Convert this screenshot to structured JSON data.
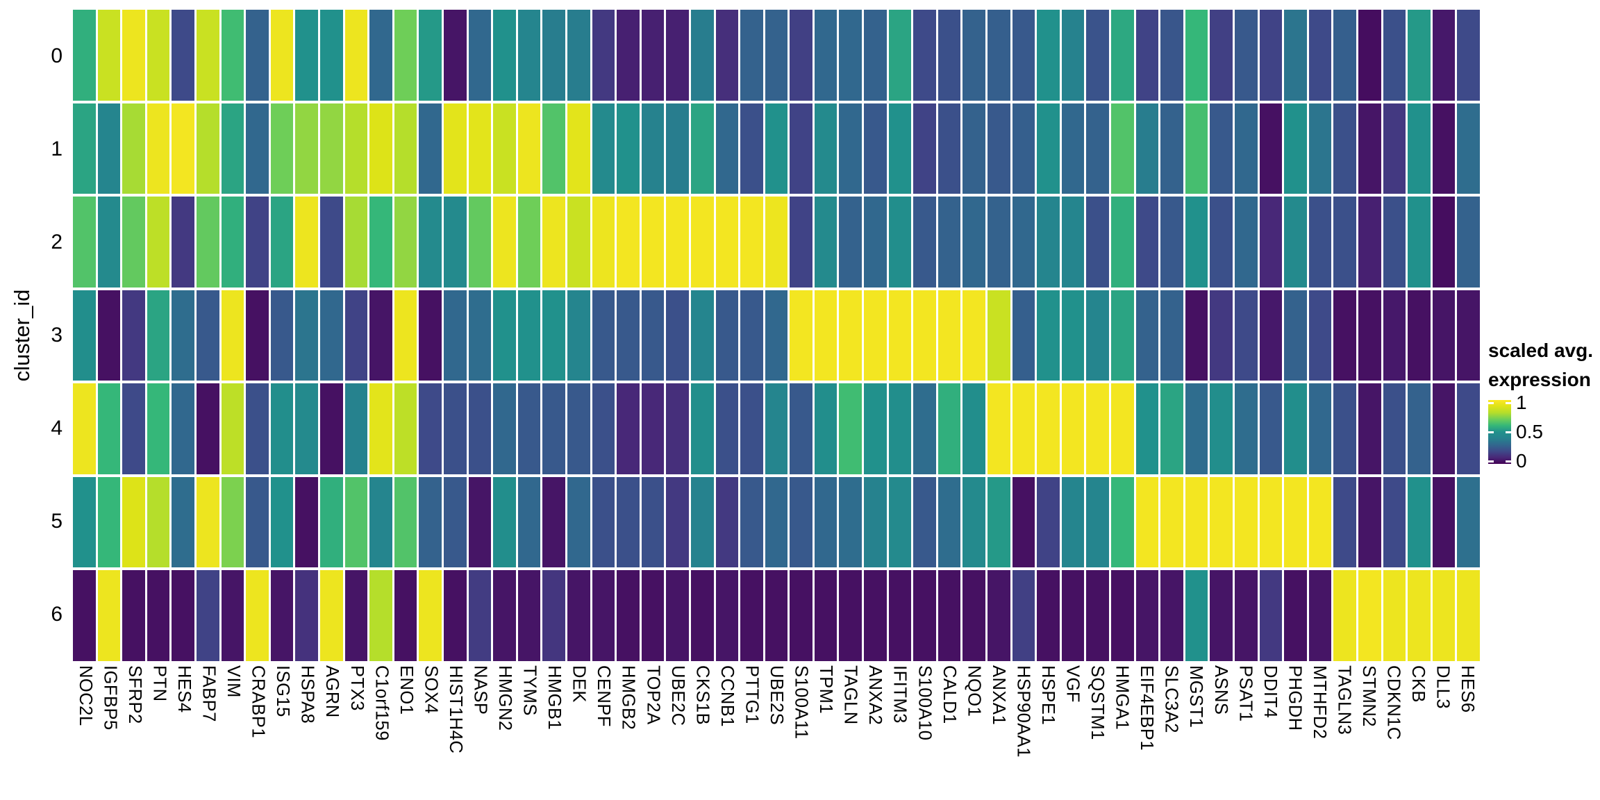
{
  "y_axis": {
    "title": "cluster_id",
    "ticks": [
      "0",
      "1",
      "2",
      "3",
      "4",
      "5",
      "6"
    ]
  },
  "legend": {
    "title_line1": "scaled avg.",
    "title_line2": "expression",
    "tick_labels": [
      "1",
      "0.5",
      "0"
    ],
    "tick_positions": [
      1.0,
      0.5,
      0.0
    ]
  },
  "colors": {
    "background": "#ffffff",
    "viridis_stops": [
      "#440154",
      "#482878",
      "#3e4a89",
      "#31688e",
      "#26828e",
      "#21918c",
      "#35b779",
      "#6ece58",
      "#b5de2b",
      "#dde318",
      "#fde725"
    ]
  },
  "chart_data": {
    "type": "heatmap",
    "title": "",
    "xlabel": "",
    "ylabel": "cluster_id",
    "legend_title": "scaled avg. expression",
    "value_range": [
      0,
      1
    ],
    "grid": false,
    "legend_position": "right",
    "x": [
      "NOC2L",
      "IGFBP5",
      "SFRP2",
      "PTN",
      "HES4",
      "FABP7",
      "VIM",
      "CRABP1",
      "ISG15",
      "HSPA8",
      "AGRN",
      "PTX3",
      "C1orf159",
      "ENO1",
      "SOX4",
      "HIST1H4C",
      "NASP",
      "HMGN2",
      "TYMS",
      "HMGB1",
      "DEK",
      "CENPF",
      "HMGB2",
      "TOP2A",
      "UBE2C",
      "CKS1B",
      "CCNB1",
      "PTTG1",
      "UBE2S",
      "S100A11",
      "TPM1",
      "TAGLN",
      "ANXA2",
      "IFITM3",
      "S100A10",
      "CALD1",
      "NQO1",
      "ANXA1",
      "HSP90AA1",
      "HSPE1",
      "VGF",
      "SQSTM1",
      "HMGA1",
      "EIF4EBP1",
      "SLC3A2",
      "MGST1",
      "ASNS",
      "PSAT1",
      "DDIT4",
      "PHGDH",
      "MTHFD2",
      "TAGLN3",
      "STMN2",
      "CDKN1C",
      "CKB",
      "DLL3",
      "HES6"
    ],
    "y": [
      "0",
      "1",
      "2",
      "3",
      "4",
      "5",
      "6"
    ],
    "values": [
      [
        0.58,
        0.85,
        0.95,
        0.85,
        0.2,
        0.85,
        0.62,
        0.28,
        0.95,
        0.5,
        0.5,
        0.95,
        0.3,
        0.7,
        0.52,
        0.05,
        0.3,
        0.5,
        0.42,
        0.38,
        0.38,
        0.15,
        0.08,
        0.08,
        0.08,
        0.38,
        0.12,
        0.28,
        0.28,
        0.17,
        0.3,
        0.3,
        0.28,
        0.55,
        0.2,
        0.22,
        0.28,
        0.27,
        0.25,
        0.5,
        0.4,
        0.23,
        0.56,
        0.18,
        0.24,
        0.6,
        0.17,
        0.25,
        0.18,
        0.35,
        0.2,
        0.27,
        0.03,
        0.22,
        0.52,
        0.06,
        0.2
      ],
      [
        0.55,
        0.42,
        0.78,
        0.95,
        0.97,
        0.8,
        0.55,
        0.3,
        0.7,
        0.75,
        0.75,
        0.8,
        0.9,
        0.8,
        0.3,
        0.92,
        0.92,
        0.85,
        0.95,
        0.65,
        0.92,
        0.45,
        0.5,
        0.4,
        0.38,
        0.55,
        0.3,
        0.22,
        0.5,
        0.18,
        0.45,
        0.3,
        0.25,
        0.5,
        0.18,
        0.22,
        0.28,
        0.25,
        0.27,
        0.5,
        0.3,
        0.28,
        0.65,
        0.38,
        0.28,
        0.63,
        0.25,
        0.3,
        0.04,
        0.5,
        0.35,
        0.22,
        0.05,
        0.15,
        0.5,
        0.04,
        0.32
      ],
      [
        0.65,
        0.45,
        0.68,
        0.82,
        0.15,
        0.68,
        0.58,
        0.18,
        0.55,
        0.95,
        0.2,
        0.78,
        0.6,
        0.75,
        0.45,
        0.45,
        0.68,
        0.95,
        0.7,
        0.95,
        0.85,
        0.95,
        0.97,
        0.97,
        0.97,
        0.97,
        0.97,
        0.97,
        0.95,
        0.18,
        0.45,
        0.28,
        0.3,
        0.48,
        0.25,
        0.28,
        0.3,
        0.28,
        0.3,
        0.42,
        0.42,
        0.22,
        0.58,
        0.2,
        0.25,
        0.5,
        0.22,
        0.3,
        0.1,
        0.45,
        0.22,
        0.22,
        0.08,
        0.22,
        0.5,
        0.03,
        0.28
      ],
      [
        0.48,
        0.04,
        0.15,
        0.55,
        0.32,
        0.25,
        0.95,
        0.04,
        0.25,
        0.35,
        0.3,
        0.18,
        0.05,
        0.95,
        0.04,
        0.3,
        0.32,
        0.5,
        0.5,
        0.5,
        0.42,
        0.25,
        0.25,
        0.25,
        0.22,
        0.42,
        0.25,
        0.25,
        0.3,
        0.97,
        0.97,
        0.97,
        0.97,
        0.97,
        0.97,
        0.97,
        0.97,
        0.85,
        0.27,
        0.5,
        0.5,
        0.42,
        0.55,
        0.28,
        0.28,
        0.04,
        0.15,
        0.2,
        0.06,
        0.28,
        0.2,
        0.04,
        0.04,
        0.06,
        0.04,
        0.05,
        0.05
      ],
      [
        0.95,
        0.6,
        0.2,
        0.6,
        0.3,
        0.04,
        0.82,
        0.22,
        0.48,
        0.45,
        0.04,
        0.4,
        0.92,
        0.82,
        0.2,
        0.22,
        0.22,
        0.3,
        0.25,
        0.25,
        0.25,
        0.22,
        0.1,
        0.1,
        0.12,
        0.48,
        0.22,
        0.22,
        0.42,
        0.25,
        0.48,
        0.62,
        0.5,
        0.48,
        0.32,
        0.58,
        0.48,
        0.97,
        0.97,
        0.97,
        0.97,
        0.97,
        0.97,
        0.5,
        0.55,
        0.32,
        0.48,
        0.32,
        0.25,
        0.48,
        0.3,
        0.22,
        0.05,
        0.22,
        0.28,
        0.05,
        0.2
      ],
      [
        0.5,
        0.6,
        0.9,
        0.8,
        0.32,
        0.95,
        0.72,
        0.25,
        0.5,
        0.04,
        0.58,
        0.65,
        0.42,
        0.65,
        0.28,
        0.25,
        0.05,
        0.48,
        0.3,
        0.05,
        0.3,
        0.22,
        0.22,
        0.22,
        0.15,
        0.4,
        0.15,
        0.25,
        0.3,
        0.25,
        0.3,
        0.32,
        0.4,
        0.45,
        0.25,
        0.32,
        0.45,
        0.52,
        0.04,
        0.18,
        0.42,
        0.42,
        0.6,
        0.97,
        0.97,
        0.97,
        0.97,
        0.97,
        0.97,
        0.97,
        0.97,
        0.2,
        0.05,
        0.2,
        0.5,
        0.04,
        0.33
      ],
      [
        0.04,
        0.95,
        0.04,
        0.04,
        0.04,
        0.18,
        0.05,
        0.95,
        0.05,
        0.13,
        0.95,
        0.05,
        0.8,
        0.04,
        0.95,
        0.04,
        0.16,
        0.05,
        0.05,
        0.14,
        0.05,
        0.05,
        0.04,
        0.04,
        0.05,
        0.04,
        0.05,
        0.04,
        0.04,
        0.04,
        0.04,
        0.04,
        0.04,
        0.04,
        0.04,
        0.04,
        0.04,
        0.05,
        0.17,
        0.04,
        0.04,
        0.04,
        0.04,
        0.05,
        0.05,
        0.5,
        0.05,
        0.05,
        0.15,
        0.04,
        0.05,
        0.95,
        0.97,
        0.95,
        0.95,
        0.95,
        0.95
      ]
    ]
  }
}
